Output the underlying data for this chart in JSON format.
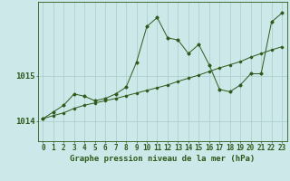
{
  "background_color": "#cce8e8",
  "plot_bg_color": "#cce8e8",
  "line_color": "#2d5a1b",
  "grid_color": "#aacccc",
  "xlabel": "Graphe pression niveau de la mer (hPa)",
  "xlabel_fontsize": 6.5,
  "ylabel_fontsize": 6.5,
  "tick_fontsize": 5.5,
  "xlim": [
    -0.5,
    23.5
  ],
  "ylim": [
    1013.55,
    1016.65
  ],
  "yticks": [
    1014,
    1015
  ],
  "xticks": [
    0,
    1,
    2,
    3,
    4,
    5,
    6,
    7,
    8,
    9,
    10,
    11,
    12,
    13,
    14,
    15,
    16,
    17,
    18,
    19,
    20,
    21,
    22,
    23
  ],
  "x": [
    0,
    1,
    2,
    3,
    4,
    5,
    6,
    7,
    8,
    9,
    10,
    11,
    12,
    13,
    14,
    15,
    16,
    17,
    18,
    19,
    20,
    21,
    22,
    23
  ],
  "y_jagged": [
    1014.05,
    1014.2,
    1014.35,
    1014.6,
    1014.55,
    1014.45,
    1014.5,
    1014.6,
    1014.75,
    1015.3,
    1016.1,
    1016.3,
    1015.85,
    1015.8,
    1015.5,
    1015.7,
    1015.25,
    1014.7,
    1014.65,
    1014.8,
    1015.05,
    1015.05,
    1016.2,
    1016.4
  ],
  "y_smooth": [
    1014.05,
    1014.12,
    1014.18,
    1014.28,
    1014.35,
    1014.4,
    1014.45,
    1014.5,
    1014.56,
    1014.62,
    1014.68,
    1014.74,
    1014.8,
    1014.88,
    1014.95,
    1015.02,
    1015.1,
    1015.18,
    1015.25,
    1015.32,
    1015.42,
    1015.5,
    1015.58,
    1015.65
  ]
}
